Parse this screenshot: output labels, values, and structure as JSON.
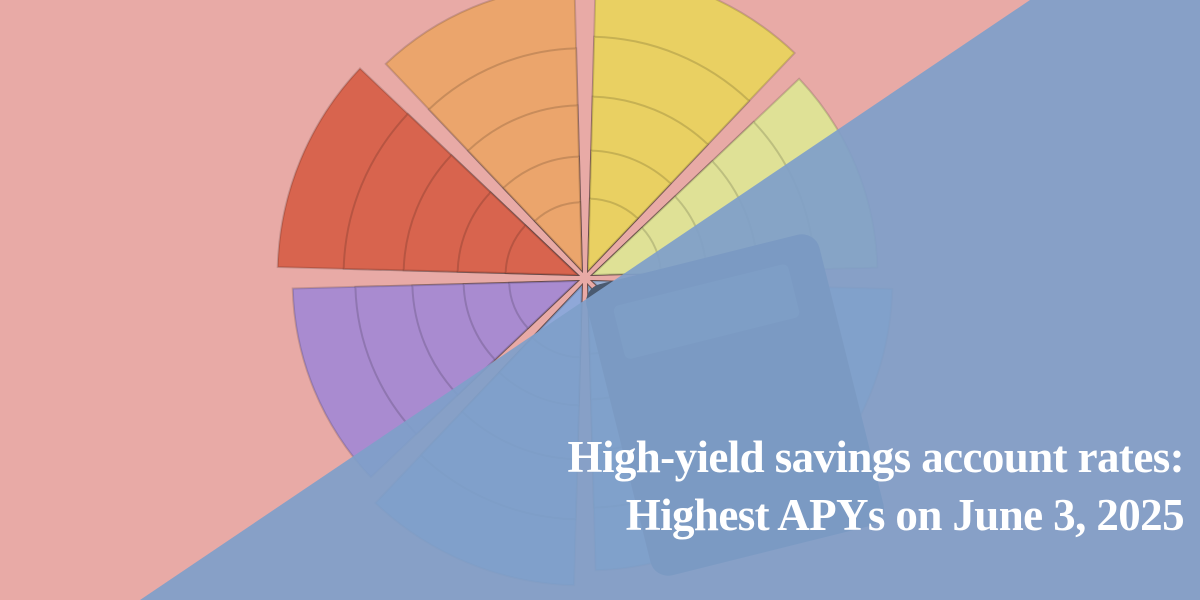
{
  "headline": {
    "line1": "High-yield savings account rates:",
    "line2": "Highest APYs on June 3, 2025"
  },
  "colors": {
    "background": "#e8aaa6",
    "overlay": "#7f9fc9",
    "text": "#ffffff"
  }
}
